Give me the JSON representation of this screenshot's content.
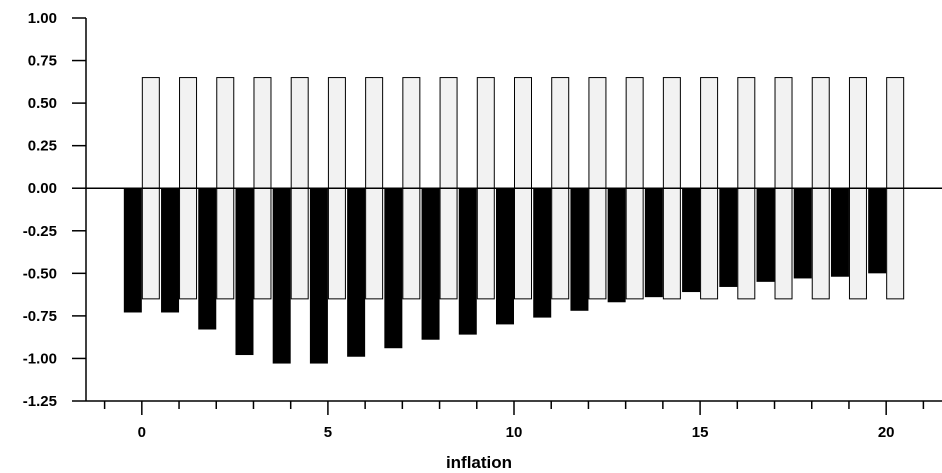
{
  "chart_data": {
    "type": "bar",
    "xlabel": "inflation",
    "ylabel": "",
    "title": "",
    "x": [
      0,
      1,
      2,
      3,
      4,
      5,
      6,
      7,
      8,
      9,
      10,
      11,
      12,
      13,
      14,
      15,
      16,
      17,
      18,
      19,
      20
    ],
    "x_ticks": [
      "0",
      "5",
      "10",
      "15",
      "20"
    ],
    "y_ticks": [
      "1.00",
      "0.75",
      "0.50",
      "0.25",
      "0.00",
      "-0.25",
      "-0.50",
      "-0.75",
      "-1.00",
      "-1.25"
    ],
    "ylim": [
      -1.25,
      1.0
    ],
    "xlim": [
      -1.5,
      21.5
    ],
    "grid": false,
    "series": [
      {
        "style": "solid black",
        "values": [
          -0.73,
          -0.73,
          -0.83,
          -0.98,
          -1.03,
          -1.03,
          -0.99,
          -0.94,
          -0.89,
          -0.86,
          -0.8,
          -0.76,
          -0.72,
          -0.67,
          -0.64,
          -0.61,
          -0.58,
          -0.55,
          -0.53,
          -0.52,
          -0.5
        ]
      },
      {
        "style": "light outlined",
        "values": [
          0.65,
          0.65,
          0.65,
          0.65,
          0.65,
          0.65,
          0.65,
          0.65,
          0.65,
          0.65,
          0.65,
          0.65,
          0.65,
          0.65,
          0.65,
          0.65,
          0.65,
          0.65,
          0.65,
          0.65,
          0.65
        ]
      },
      {
        "style": "light outlined",
        "values": [
          -0.65,
          -0.65,
          -0.65,
          -0.65,
          -0.65,
          -0.65,
          -0.65,
          -0.65,
          -0.65,
          -0.65,
          -0.65,
          -0.65,
          -0.65,
          -0.65,
          -0.65,
          -0.65,
          -0.65,
          -0.65,
          -0.65,
          -0.65,
          -0.65
        ]
      }
    ],
    "colors": {
      "solid": "#000000",
      "light_fill": "#f2f2f2",
      "outline": "#000000"
    }
  }
}
